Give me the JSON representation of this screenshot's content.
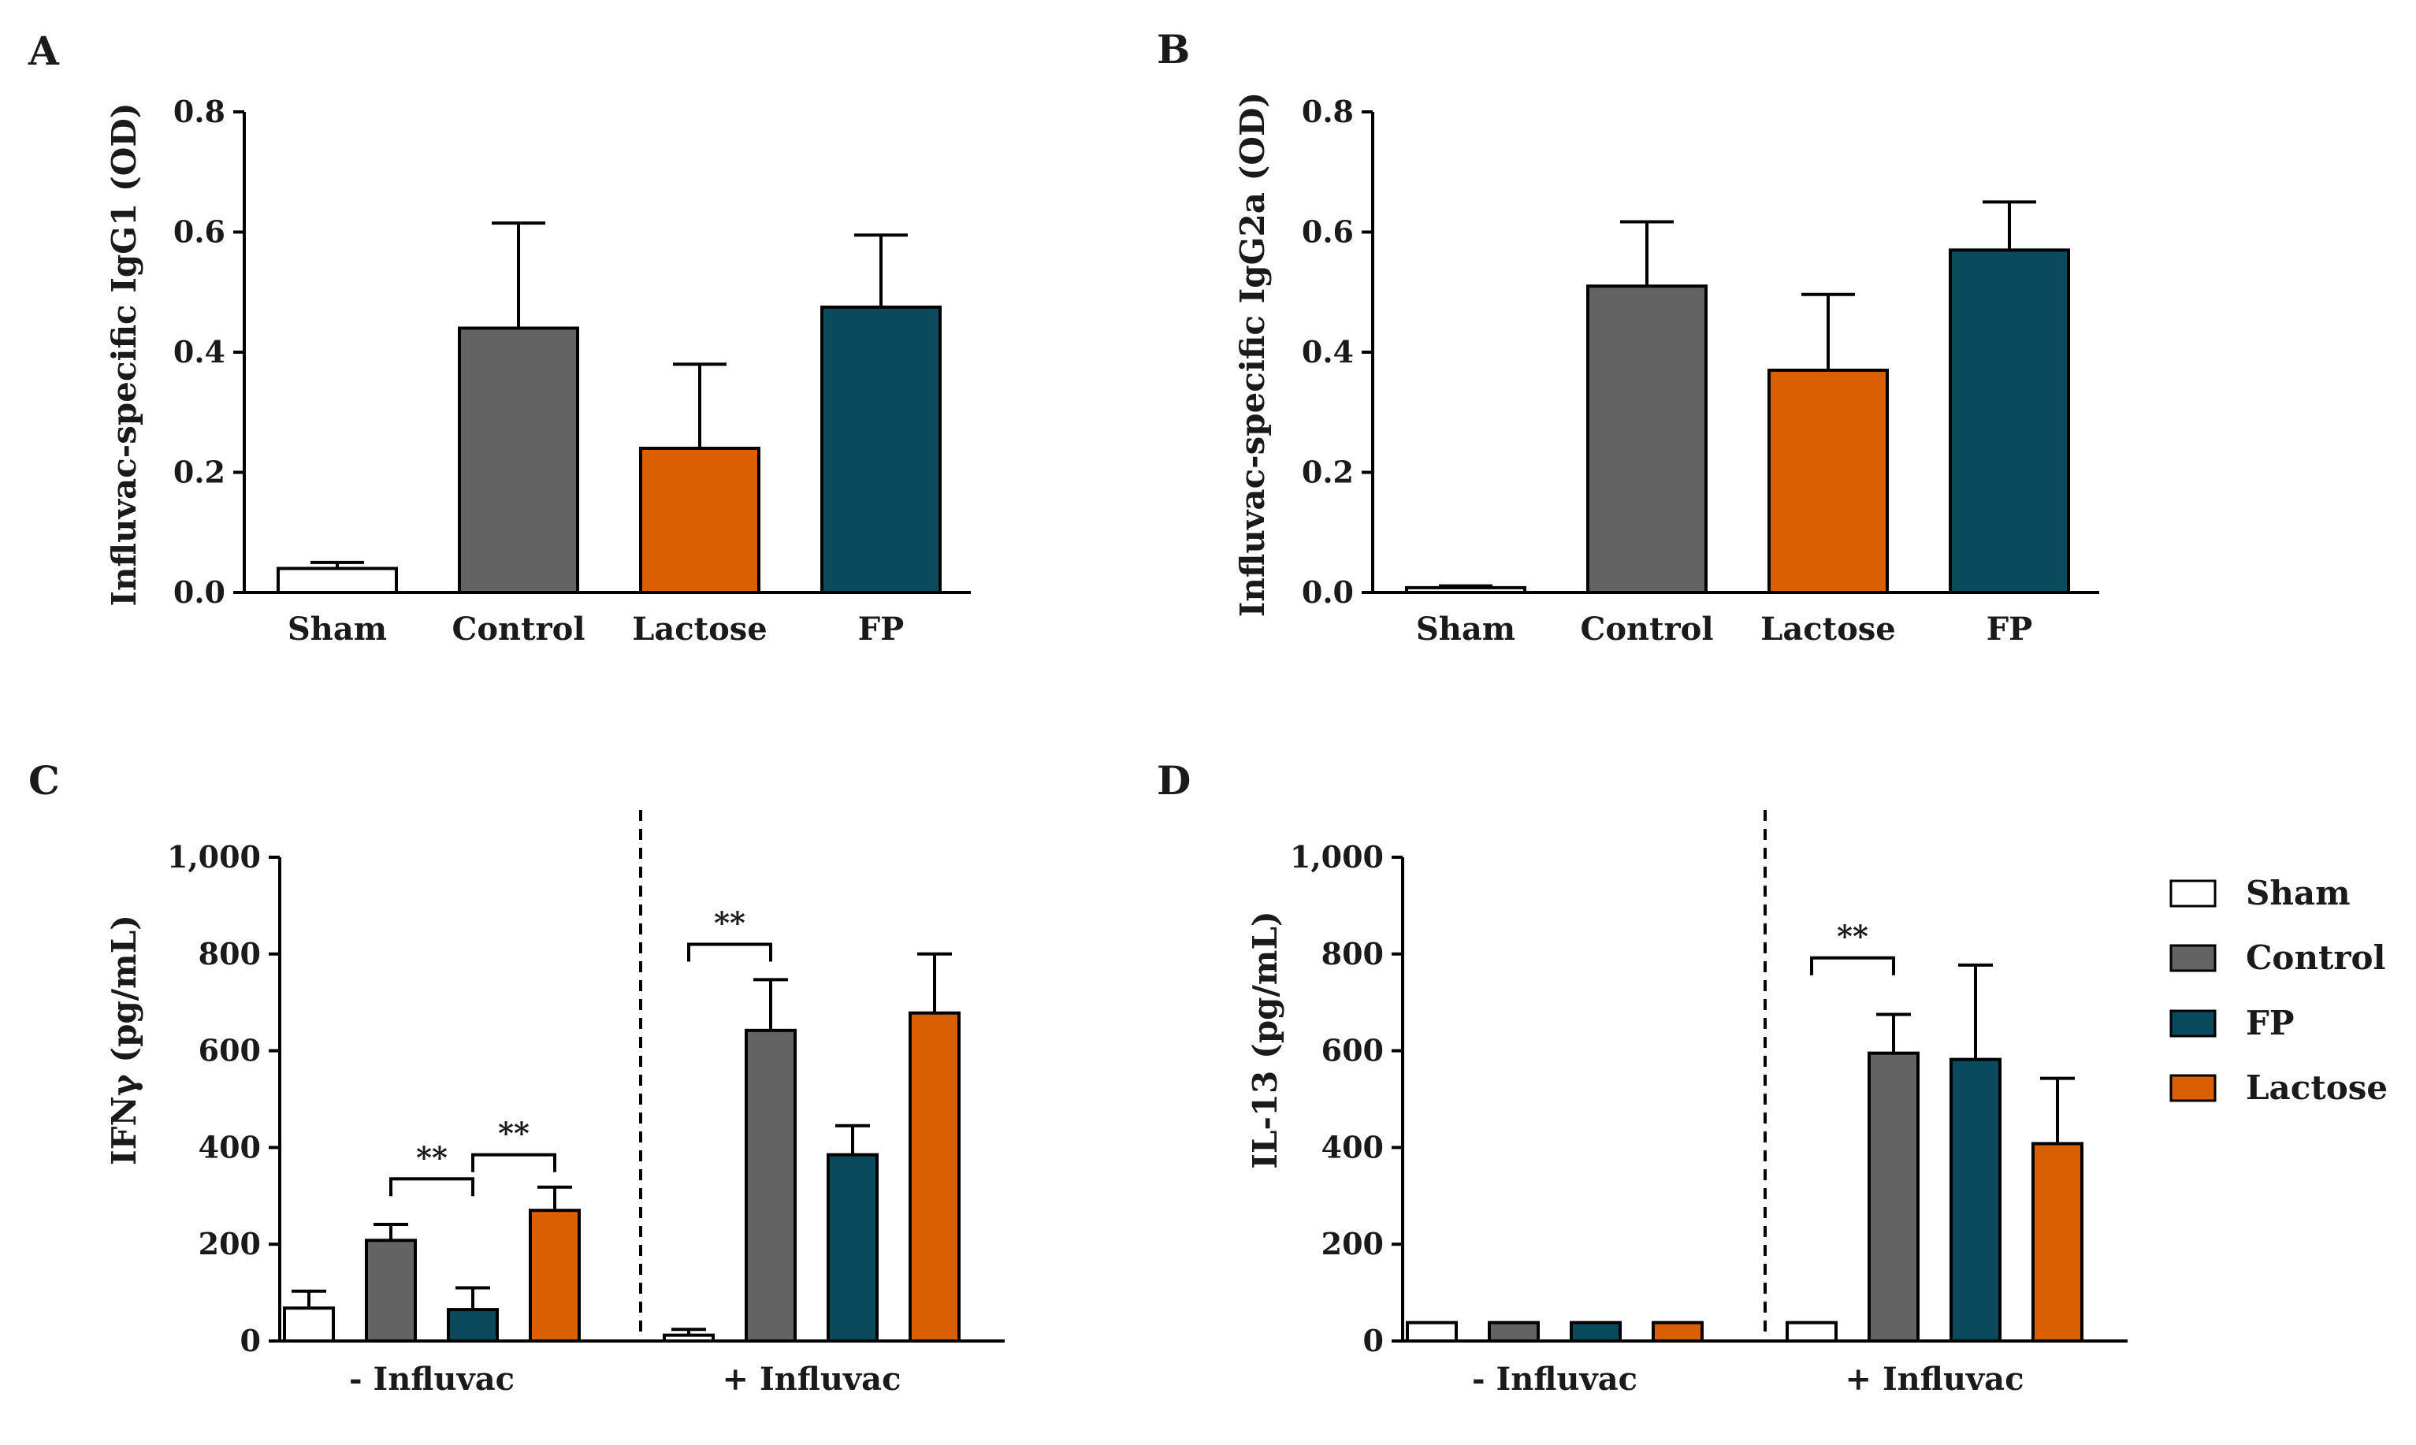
{
  "colors": {
    "Sham": "#ffffff",
    "Control": "#636363",
    "FP": "#0a4a5c",
    "Lactose": "#d95f02"
  },
  "legend": {
    "entries": [
      "Sham",
      "Control",
      "FP",
      "Lactose"
    ]
  },
  "chart_data": [
    {
      "panel": "A",
      "type": "bar",
      "ylabel": "Influvac-specific IgG1 (OD)",
      "ylim": [
        0,
        0.8
      ],
      "ticks": [
        0.0,
        0.2,
        0.4,
        0.6,
        0.8
      ],
      "tick_labels": [
        "0.0",
        "0.2",
        "0.4",
        "0.6",
        "0.8"
      ],
      "categories": [
        "Sham",
        "Control",
        "Lactose",
        "FP"
      ],
      "values": [
        0.04,
        0.44,
        0.24,
        0.475
      ],
      "errors": [
        0.01,
        0.175,
        0.14,
        0.12
      ]
    },
    {
      "panel": "B",
      "type": "bar",
      "ylabel": "Influvac-specific IgG2a (OD)",
      "ylim": [
        0,
        0.8
      ],
      "ticks": [
        0.0,
        0.2,
        0.4,
        0.6,
        0.8
      ],
      "tick_labels": [
        "0.0",
        "0.2",
        "0.4",
        "0.6",
        "0.8"
      ],
      "categories": [
        "Sham",
        "Control",
        "Lactose",
        "FP"
      ],
      "values": [
        0.008,
        0.51,
        0.37,
        0.57
      ],
      "errors": [
        0.003,
        0.107,
        0.126,
        0.08
      ]
    },
    {
      "panel": "C",
      "type": "bar",
      "ylabel": "IFNγ (pg/mL)",
      "ylim": [
        0,
        1000
      ],
      "ticks": [
        0,
        200,
        400,
        600,
        800,
        1000
      ],
      "tick_labels": [
        "0",
        "200",
        "400",
        "600",
        "800",
        "1,000"
      ],
      "groups": [
        "- Influvac",
        "+ Influvac"
      ],
      "series": [
        {
          "name": "Sham",
          "values": [
            68,
            12
          ],
          "errors": [
            35,
            12
          ]
        },
        {
          "name": "Control",
          "values": [
            208,
            642
          ],
          "errors": [
            33,
            105
          ]
        },
        {
          "name": "FP",
          "values": [
            65,
            385
          ],
          "errors": [
            45,
            60
          ]
        },
        {
          "name": "Lactose",
          "values": [
            270,
            678
          ],
          "errors": [
            48,
            122
          ]
        }
      ],
      "significance": [
        {
          "label": "**",
          "group": 0,
          "from": "Control",
          "to": "FP",
          "y": 335
        },
        {
          "label": "**",
          "group": 0,
          "from": "FP",
          "to": "Lactose",
          "y": 385
        },
        {
          "label": "**",
          "group": 1,
          "from": "Sham",
          "to": "Control",
          "y": 820
        }
      ]
    },
    {
      "panel": "D",
      "type": "bar",
      "ylabel": "IL-13 (pg/mL)",
      "ylim": [
        0,
        1000
      ],
      "ticks": [
        0,
        200,
        400,
        600,
        800,
        1000
      ],
      "tick_labels": [
        "0",
        "200",
        "400",
        "600",
        "800",
        "1,000"
      ],
      "groups": [
        "- Influvac",
        "+ Influvac"
      ],
      "series": [
        {
          "name": "Sham",
          "values": [
            38,
            38
          ],
          "errors": [
            0,
            0
          ]
        },
        {
          "name": "Control",
          "values": [
            38,
            595
          ],
          "errors": [
            0,
            80
          ]
        },
        {
          "name": "FP",
          "values": [
            38,
            582
          ],
          "errors": [
            0,
            195
          ]
        },
        {
          "name": "Lactose",
          "values": [
            38,
            408
          ],
          "errors": [
            0,
            135
          ]
        }
      ],
      "significance": [
        {
          "label": "**",
          "group": 1,
          "from": "Sham",
          "to": "Control",
          "y": 792
        }
      ]
    }
  ]
}
